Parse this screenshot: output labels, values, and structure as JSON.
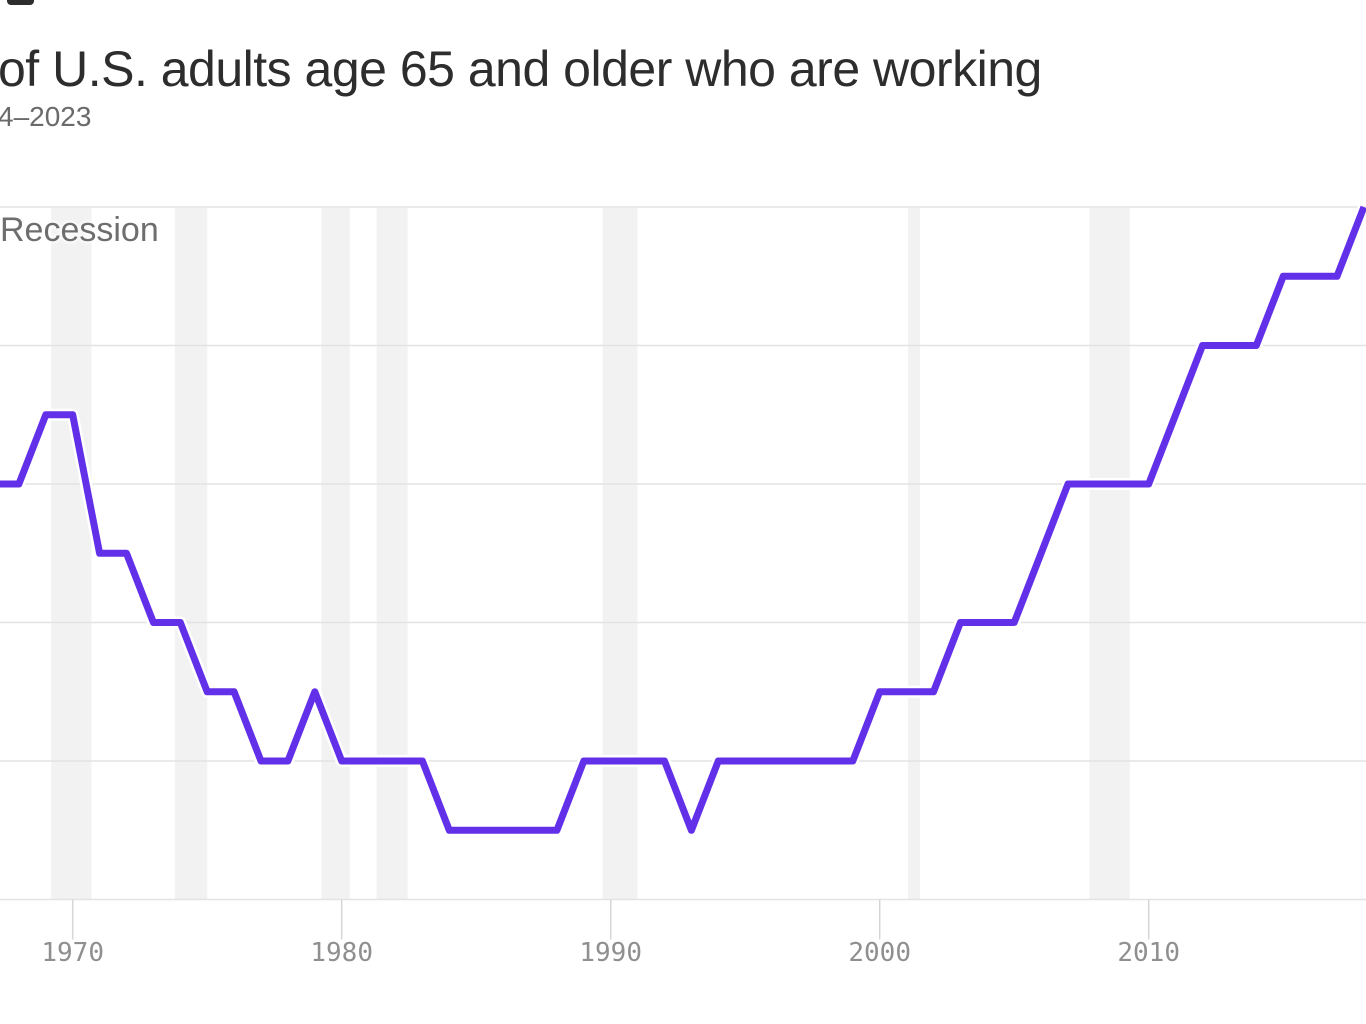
{
  "header": {
    "title": "of U.S. adults age 65 and older who are working",
    "subtitle": "4–2023"
  },
  "chart": {
    "recession_label": "Recession"
  },
  "chart_data": {
    "type": "line",
    "title": "of U.S. adults age 65 and older who are working",
    "subtitle_visible": "4–2023",
    "x": [
      1967,
      1968,
      1969,
      1970,
      1971,
      1972,
      1973,
      1974,
      1975,
      1976,
      1977,
      1978,
      1979,
      1980,
      1981,
      1982,
      1983,
      1984,
      1985,
      1986,
      1987,
      1988,
      1989,
      1990,
      1991,
      1992,
      1993,
      1994,
      1995,
      1996,
      1997,
      1998,
      1999,
      2000,
      2001,
      2002,
      2003,
      2004,
      2005,
      2006,
      2007,
      2008,
      2009,
      2010,
      2011,
      2012,
      2013,
      2014,
      2015,
      2016,
      2017,
      2018
    ],
    "values": [
      15,
      15,
      16,
      16,
      14,
      14,
      13,
      13,
      12,
      12,
      11,
      11,
      12,
      11,
      11,
      11,
      11,
      10,
      10,
      10,
      10,
      10,
      11,
      11,
      11,
      11,
      10,
      11,
      11,
      11,
      11,
      11,
      11,
      12,
      12,
      12,
      13,
      13,
      13,
      14,
      15,
      15,
      15,
      15,
      16,
      17,
      17,
      17,
      18,
      18,
      18,
      19
    ],
    "unit": "percent",
    "x_ticks": [
      1970,
      1980,
      1990,
      2000,
      2010
    ],
    "y_gridline_values": [
      19,
      17,
      15,
      13,
      11
    ],
    "y_baseline_value": 9,
    "ylim": [
      9,
      19
    ],
    "xlim_visible": [
      1967.3,
      2018.1
    ],
    "grid": true,
    "legend_position": "none",
    "annotation": "Recession",
    "recession_bands_years": [
      [
        1969.2,
        1970.7
      ],
      [
        1973.8,
        1975.0
      ],
      [
        1979.25,
        1980.3
      ],
      [
        1981.3,
        1982.45
      ],
      [
        1989.7,
        1991.0
      ],
      [
        2001.05,
        2001.5
      ],
      [
        2007.8,
        2009.3
      ]
    ],
    "colors": {
      "line": "#6330ea",
      "line_casing": "#ffffff",
      "recession_band": "#f2f2f2",
      "gridline": "#e3e3e3",
      "tick": "#d6d6d6",
      "tick_label": "#8f8f8f",
      "title": "#2d2d2d",
      "subtitle": "#6a6a6a",
      "annotation": "#6e6e6e"
    }
  }
}
